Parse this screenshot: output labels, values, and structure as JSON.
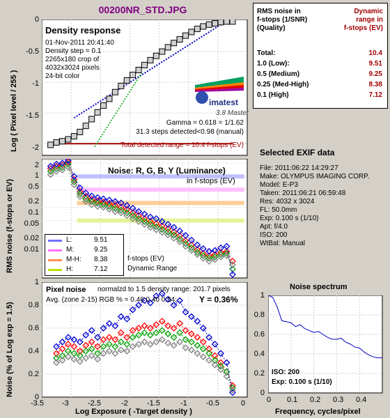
{
  "header": {
    "title": "00200NR_STD.JPG"
  },
  "density": {
    "heading": "Density response",
    "info": [
      "01-Nov-2011 20:41:40",
      "Density step = 0.1",
      "2265x180 crop of",
      "4032x3024 pixels",
      "24-bit color"
    ],
    "gamma": "Gamma = 0.618 = 1/1.62",
    "steps": "31.3 steps detected<0.98 (manual)",
    "range_text": "Total detected range = 10.4 f-stops (EV)",
    "ylabel": "Log ( Pixel level / 255 )",
    "yticks": [
      "0",
      "-0.5",
      "-1",
      "-1.5",
      "-2"
    ],
    "logo_text": "imatest",
    "logo_version": "3.8  Master"
  },
  "noise": {
    "heading": "Noise: R, G, B, Y (Luminance)",
    "sub": "in f-stops (EV)",
    "ylabel": "RMS noise (f-stops or EV)",
    "yticks": [
      "2",
      "1",
      "0.5",
      "0.2",
      "0.1",
      "0.05",
      "0.02",
      "0.01"
    ],
    "legend": [
      {
        "label": "L:",
        "value": "9.51",
        "color": "#7070ff"
      },
      {
        "label": "M:",
        "value": "9.25",
        "color": "#ff70ff"
      },
      {
        "label": "M-H:",
        "value": "8.38",
        "color": "#ff9050"
      },
      {
        "label": "H:",
        "value": "7.12",
        "color": "#c0e000"
      }
    ],
    "note1": "f-stops (EV)",
    "note2": "Dynamic Range"
  },
  "pixel_noise": {
    "heading": "Pixel noise",
    "norm": "normalzd to 1.5 density range: 201.7 pixels",
    "avg": "Avg. (zone 2-15) RGB % = 0.46  0.40  0.54;",
    "y_value": "Y = 0.36%",
    "ylabel": "Noise (% of Log exp = 1.5)",
    "yticks": [
      "1",
      "0.8",
      "0.6",
      "0.4",
      "0.2",
      "0"
    ],
    "xticks": [
      "-3.5",
      "-3",
      "-2.5",
      "-2",
      "-1.5",
      "-1",
      "-0.5",
      "0"
    ],
    "xlabel": "Log Exposure ( -Target density )"
  },
  "dr_table": {
    "header_left": [
      "RMS noise in",
      "f-stops (1/SNR)",
      "(Quality)"
    ],
    "header_right": [
      "Dynamic",
      "range in",
      "f-stops (EV)"
    ],
    "rows": [
      {
        "label": "Total:",
        "value": "10.4"
      },
      {
        "label": "1.0   (Low):",
        "value": "9.51"
      },
      {
        "label": "0.5   (Medium)",
        "value": "9.25"
      },
      {
        "label": "0.25 (Med-High)",
        "value": "8.38"
      },
      {
        "label": "0.1   (High)",
        "value": "7.12"
      }
    ]
  },
  "exif": {
    "heading": "Selected EXIF data",
    "lines": [
      "File:  2011:06:22 14:29:27",
      "Make:  OLYMPUS IMAGING CORP.",
      "Model: E-P3",
      "Taken: 2011:06:21 06:59:48",
      "Res:    4032 x 3024",
      "FL:  50.0mm",
      "Exp:   0.100 s  (1/10)",
      "Apt:  f/4.0",
      "ISO:   200",
      "WtBal: Manual"
    ]
  },
  "spectrum": {
    "title": "Noise spectrum",
    "yticks": [
      "1",
      "0.8",
      "0.6",
      "0.4",
      "0.2",
      "0"
    ],
    "xticks": [
      "0",
      "0.1",
      "0.2",
      "0.3",
      "0.4"
    ],
    "xlabel": "Frequency, cycles/pixel",
    "iso": "ISO:   200",
    "exp": "Exp:   0.100 s   (1/10)"
  },
  "chart_data": [
    {
      "type": "line",
      "name": "density_response",
      "xlim": [
        -3.5,
        0
      ],
      "ylim": [
        -2.1,
        0
      ],
      "x": [
        -3.35,
        -3.25,
        -3.15,
        -3.05,
        -2.95,
        -2.85,
        -2.75,
        -2.65,
        -2.55,
        -2.45,
        -2.35,
        -2.25,
        -2.15,
        -2.05,
        -1.95,
        -1.85,
        -1.75,
        -1.65,
        -1.55,
        -1.45,
        -1.35,
        -1.25,
        -1.15,
        -1.05,
        -0.95,
        -0.85,
        -0.75,
        -0.65,
        -0.55,
        -0.45,
        -0.35,
        -0.25
      ],
      "y": [
        -2.02,
        -1.98,
        -1.96,
        -1.93,
        -1.88,
        -1.81,
        -1.71,
        -1.6,
        -1.49,
        -1.38,
        -1.27,
        -1.16,
        -1.06,
        -0.97,
        -0.88,
        -0.8,
        -0.72,
        -0.64,
        -0.57,
        -0.5,
        -0.43,
        -0.36,
        -0.3,
        -0.24,
        -0.18,
        -0.13,
        -0.09,
        -0.06,
        -0.04,
        -0.02,
        -0.01,
        -0.01
      ],
      "fit_line": {
        "x": [
          -2.95,
          -0.35
        ],
        "y": [
          -1.58,
          0.0
        ]
      },
      "range_line": {
        "x": [
          -3.35,
          -0.25
        ],
        "y": -2.0
      },
      "ylabel": "Log ( Pixel level / 255 )"
    },
    {
      "type": "scatter",
      "name": "rms_noise_fstops",
      "scale": "log",
      "ylim": [
        0.005,
        2.5
      ],
      "x": [
        -3.35,
        -3.25,
        -3.15,
        -3.05,
        -2.95,
        -2.85,
        -2.75,
        -2.65,
        -2.55,
        -2.45,
        -2.35,
        -2.25,
        -2.15,
        -2.05,
        -1.95,
        -1.85,
        -1.75,
        -1.65,
        -1.55,
        -1.45,
        -1.35,
        -1.25,
        -1.15,
        -1.05,
        -0.95,
        -0.85,
        -0.75,
        -0.65,
        -0.55,
        -0.45,
        -0.35,
        -0.25
      ],
      "series": [
        {
          "name": "R",
          "color": "#ff0000",
          "values": [
            1.5,
            1.7,
            1.8,
            2.1,
            0.85,
            0.45,
            0.35,
            0.3,
            0.28,
            0.26,
            0.24,
            0.22,
            0.2,
            0.18,
            0.15,
            0.13,
            0.11,
            0.095,
            0.085,
            0.075,
            0.065,
            0.055,
            0.045,
            0.035,
            0.028,
            0.022,
            0.018,
            0.016,
            0.017,
            0.019,
            0.02,
            0.012
          ]
        },
        {
          "name": "G",
          "color": "#00a000",
          "values": [
            1.3,
            1.5,
            1.6,
            1.9,
            0.75,
            0.4,
            0.31,
            0.27,
            0.25,
            0.23,
            0.21,
            0.19,
            0.17,
            0.15,
            0.13,
            0.11,
            0.095,
            0.082,
            0.072,
            0.063,
            0.055,
            0.047,
            0.038,
            0.03,
            0.024,
            0.019,
            0.016,
            0.014,
            0.015,
            0.017,
            0.018,
            0.008
          ]
        },
        {
          "name": "B",
          "color": "#0000d0",
          "values": [
            1.7,
            1.9,
            2.0,
            2.3,
            1.0,
            0.55,
            0.42,
            0.36,
            0.33,
            0.31,
            0.29,
            0.27,
            0.25,
            0.22,
            0.19,
            0.16,
            0.14,
            0.12,
            0.11,
            0.095,
            0.082,
            0.07,
            0.058,
            0.046,
            0.036,
            0.028,
            0.023,
            0.02,
            0.021,
            0.024,
            0.026,
            0.006
          ]
        },
        {
          "name": "Y",
          "color": "#808080",
          "values": [
            1.1,
            1.3,
            1.4,
            1.6,
            0.65,
            0.35,
            0.27,
            0.23,
            0.21,
            0.2,
            0.18,
            0.16,
            0.15,
            0.13,
            0.11,
            0.095,
            0.082,
            0.07,
            0.062,
            0.054,
            0.047,
            0.04,
            0.033,
            0.026,
            0.021,
            0.017,
            0.014,
            0.012,
            0.013,
            0.015,
            0.016,
            0.01
          ]
        }
      ],
      "thresholds": [
        {
          "label": "L",
          "level": 1.0
        },
        {
          "label": "M",
          "level": 0.5
        },
        {
          "label": "M-H",
          "level": 0.25
        },
        {
          "label": "H",
          "level": 0.1
        }
      ]
    },
    {
      "type": "scatter",
      "name": "pixel_noise",
      "xlim": [
        -3.5,
        0
      ],
      "ylim": [
        0,
        1
      ],
      "x": [
        -3.25,
        -3.15,
        -3.05,
        -2.95,
        -2.85,
        -2.75,
        -2.65,
        -2.55,
        -2.45,
        -2.35,
        -2.25,
        -2.15,
        -2.05,
        -1.95,
        -1.85,
        -1.75,
        -1.65,
        -1.55,
        -1.45,
        -1.35,
        -1.25,
        -1.15,
        -1.05,
        -0.95,
        -0.85,
        -0.75,
        -0.65,
        -0.55,
        -0.45,
        -0.35,
        -0.25
      ],
      "series": [
        {
          "name": "R",
          "color": "#ff0000",
          "values": [
            0.38,
            0.42,
            0.46,
            0.44,
            0.4,
            0.45,
            0.48,
            0.44,
            0.5,
            0.52,
            0.5,
            0.56,
            0.52,
            0.58,
            0.6,
            0.62,
            0.6,
            0.63,
            0.66,
            0.62,
            0.6,
            0.64,
            0.58,
            0.55,
            0.52,
            0.48,
            0.42,
            0.36,
            0.3,
            0.22,
            0.1
          ]
        },
        {
          "name": "G",
          "color": "#00a000",
          "values": [
            0.34,
            0.36,
            0.4,
            0.38,
            0.36,
            0.4,
            0.42,
            0.38,
            0.44,
            0.46,
            0.44,
            0.48,
            0.46,
            0.52,
            0.54,
            0.56,
            0.54,
            0.56,
            0.58,
            0.55,
            0.52,
            0.56,
            0.5,
            0.48,
            0.45,
            0.42,
            0.38,
            0.32,
            0.27,
            0.22,
            0.08
          ]
        },
        {
          "name": "B",
          "color": "#0000d0",
          "values": [
            0.44,
            0.48,
            0.52,
            0.5,
            0.48,
            0.54,
            0.58,
            0.52,
            0.6,
            0.64,
            0.62,
            0.7,
            0.68,
            0.76,
            0.8,
            0.84,
            0.82,
            0.88,
            0.9,
            0.85,
            0.8,
            0.84,
            0.74,
            0.7,
            0.66,
            0.6,
            0.52,
            0.46,
            0.38,
            0.3,
            0.04
          ]
        },
        {
          "name": "Y",
          "color": "#808080",
          "values": [
            0.3,
            0.32,
            0.35,
            0.33,
            0.31,
            0.34,
            0.36,
            0.33,
            0.38,
            0.4,
            0.38,
            0.41,
            0.4,
            0.44,
            0.46,
            0.48,
            0.46,
            0.48,
            0.5,
            0.47,
            0.45,
            0.48,
            0.43,
            0.41,
            0.38,
            0.35,
            0.32,
            0.28,
            0.24,
            0.18,
            0.06
          ]
        }
      ],
      "xlabel": "Log Exposure ( -Target density )",
      "ylabel": "Noise (% of Log exp = 1.5)"
    },
    {
      "type": "line",
      "name": "noise_spectrum",
      "title": "Noise spectrum",
      "xlim": [
        0,
        0.5
      ],
      "ylim": [
        0,
        1
      ],
      "x": [
        0.0,
        0.02,
        0.04,
        0.06,
        0.08,
        0.1,
        0.12,
        0.14,
        0.16,
        0.18,
        0.2,
        0.22,
        0.24,
        0.26,
        0.28,
        0.3,
        0.32,
        0.34,
        0.36,
        0.38,
        0.4,
        0.42,
        0.44,
        0.46,
        0.48,
        0.5
      ],
      "y": [
        1.0,
        0.98,
        0.88,
        0.74,
        0.73,
        0.72,
        0.68,
        0.7,
        0.66,
        0.64,
        0.62,
        0.63,
        0.6,
        0.57,
        0.55,
        0.55,
        0.56,
        0.52,
        0.5,
        0.47,
        0.46,
        0.42,
        0.39,
        0.37,
        0.36,
        0.36
      ],
      "xlabel": "Frequency, cycles/pixel"
    }
  ]
}
